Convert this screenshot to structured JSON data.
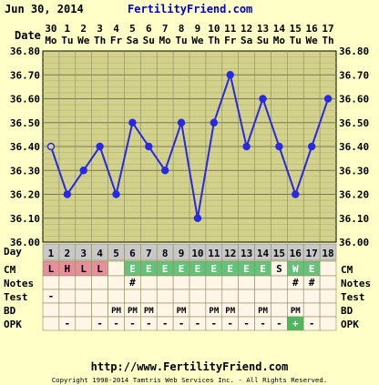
{
  "header": {
    "date": "Jun 30, 2014",
    "site": "FertilityFriend.com"
  },
  "footer": {
    "url": "http://www.FertilityFriend.com",
    "copyright": "Copyright 1998-2014 Tamtris Web Services Inc. - All Rights Reserved."
  },
  "row_labels": {
    "date": "Date",
    "day": "Day",
    "cm": "CM",
    "notes": "Notes",
    "test": "Test",
    "bd": "BD",
    "opk": "OPK"
  },
  "colors": {
    "background": "#ffffc8",
    "grid_bg": "#d2d28c",
    "line": "#2828e6",
    "menses": "#e88e9c",
    "fertile_cm": "#66c27a",
    "day_box": "#c8c8c8",
    "opk_positive": "#4fb85f"
  },
  "chart_data": {
    "type": "line",
    "title": "",
    "y_tick_labels": [
      "36.00",
      "36.10",
      "36.20",
      "36.30",
      "36.40",
      "36.50",
      "36.60",
      "36.70",
      "36.80"
    ],
    "ylim": [
      36.0,
      36.8
    ],
    "grid": true,
    "x_dates": [
      "30",
      "1",
      "2",
      "3",
      "4",
      "5",
      "6",
      "7",
      "8",
      "9",
      "10",
      "11",
      "12",
      "13",
      "14",
      "15",
      "16",
      "17"
    ],
    "x_weekdays": [
      "Mo",
      "Tu",
      "We",
      "Th",
      "Fr",
      "Sa",
      "Su",
      "Mo",
      "Tu",
      "We",
      "Th",
      "Fr",
      "Sa",
      "Su",
      "Mo",
      "Tu",
      "We",
      "Th"
    ],
    "days": [
      "1",
      "2",
      "3",
      "4",
      "5",
      "6",
      "7",
      "8",
      "9",
      "10",
      "11",
      "12",
      "13",
      "14",
      "15",
      "16",
      "17",
      "18"
    ],
    "series": [
      {
        "values": [
          36.4,
          36.2,
          36.3,
          36.4,
          36.2,
          36.5,
          36.4,
          36.3,
          36.5,
          36.1,
          36.5,
          36.7,
          36.4,
          36.6,
          36.4,
          36.2,
          36.4,
          36.6
        ],
        "open_points": [
          0
        ]
      }
    ],
    "cm": [
      "L",
      "H",
      "L",
      "L",
      "",
      "E",
      "E",
      "E",
      "E",
      "E",
      "E",
      "E",
      "E",
      "E",
      "S",
      "W",
      "E",
      ""
    ],
    "notes": [
      "",
      "",
      "",
      "",
      "",
      "#",
      "",
      "",
      "",
      "",
      "",
      "",
      "",
      "",
      "",
      "#",
      "#",
      ""
    ],
    "test": [
      "-",
      "",
      "",
      "",
      "",
      "",
      "",
      "",
      "",
      "",
      "",
      "",
      "",
      "",
      "",
      "",
      "",
      ""
    ],
    "bd": [
      "",
      "",
      "",
      "",
      "PM",
      "PM",
      "PM",
      "",
      "PM",
      "",
      "PM",
      "PM",
      "",
      "PM",
      "",
      "PM",
      "",
      ""
    ],
    "opk": [
      "",
      "-",
      "",
      "-",
      "-",
      "-",
      "-",
      "-",
      "-",
      "-",
      "-",
      "-",
      "-",
      "-",
      "-",
      "+",
      "-",
      ""
    ]
  }
}
